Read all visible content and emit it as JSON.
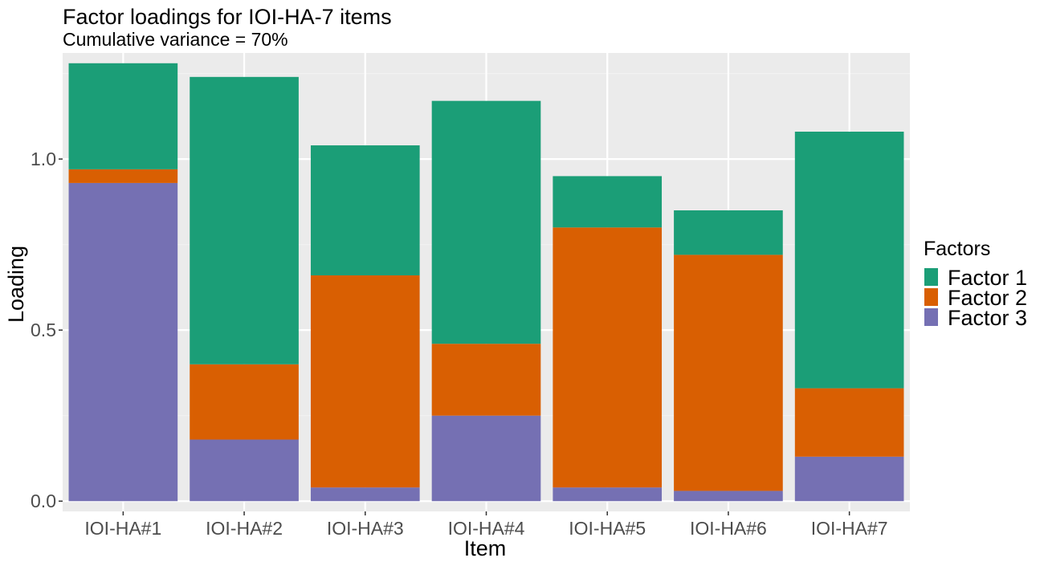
{
  "chart_data": {
    "type": "bar",
    "stacked": true,
    "title": "Factor loadings for IOI-HA-7 items",
    "subtitle": "Cumulative variance = 70%",
    "xlabel": "Item",
    "ylabel": "Loading",
    "categories": [
      "IOI-HA#1",
      "IOI-HA#2",
      "IOI-HA#3",
      "IOI-HA#4",
      "IOI-HA#5",
      "IOI-HA#6",
      "IOI-HA#7"
    ],
    "series": [
      {
        "name": "Factor 3",
        "color": "#7570B3",
        "values": [
          0.93,
          0.18,
          0.04,
          0.25,
          0.04,
          0.03,
          0.13
        ]
      },
      {
        "name": "Factor 2",
        "color": "#D95F02",
        "values": [
          0.04,
          0.22,
          0.62,
          0.21,
          0.76,
          0.69,
          0.2
        ]
      },
      {
        "name": "Factor 1",
        "color": "#1B9E77",
        "values": [
          0.31,
          0.84,
          0.38,
          0.71,
          0.15,
          0.13,
          0.75
        ]
      }
    ],
    "ylim": [
      -0.03,
      1.31
    ],
    "yticks": [
      0.0,
      0.5,
      1.0
    ],
    "ytick_labels": [
      "0.0",
      "0.5",
      "1.0"
    ],
    "grid": true,
    "legend": {
      "title": "Factors",
      "position": "right",
      "entries": [
        {
          "label": "Factor 1",
          "color": "#1B9E77"
        },
        {
          "label": "Factor 2",
          "color": "#D95F02"
        },
        {
          "label": "Factor 3",
          "color": "#7570B3"
        }
      ]
    },
    "colors": {
      "panel_bg": "#EBEBEB",
      "grid_major": "#FFFFFF",
      "grid_minor": "#F2F2F2",
      "tick_text": "#4D4D4D"
    }
  }
}
